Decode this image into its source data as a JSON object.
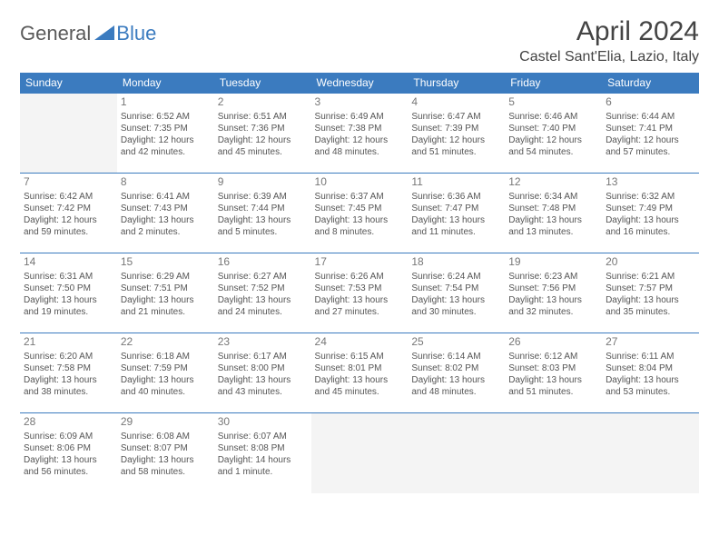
{
  "logo": {
    "part1": "General",
    "part2": "Blue"
  },
  "title": "April 2024",
  "location": "Castel Sant'Elia, Lazio, Italy",
  "colors": {
    "header_bg": "#3b7bbf",
    "header_text": "#ffffff",
    "cell_border": "#3b7bbf",
    "dim_bg": "#f4f4f4",
    "body_text": "#555555",
    "daynum_text": "#777777",
    "logo_gray": "#5a5a5a",
    "logo_blue": "#3b7bbf"
  },
  "day_headers": [
    "Sunday",
    "Monday",
    "Tuesday",
    "Wednesday",
    "Thursday",
    "Friday",
    "Saturday"
  ],
  "weeks": [
    [
      {
        "day": "",
        "lines": []
      },
      {
        "day": "1",
        "lines": [
          "Sunrise: 6:52 AM",
          "Sunset: 7:35 PM",
          "Daylight: 12 hours",
          "and 42 minutes."
        ]
      },
      {
        "day": "2",
        "lines": [
          "Sunrise: 6:51 AM",
          "Sunset: 7:36 PM",
          "Daylight: 12 hours",
          "and 45 minutes."
        ]
      },
      {
        "day": "3",
        "lines": [
          "Sunrise: 6:49 AM",
          "Sunset: 7:38 PM",
          "Daylight: 12 hours",
          "and 48 minutes."
        ]
      },
      {
        "day": "4",
        "lines": [
          "Sunrise: 6:47 AM",
          "Sunset: 7:39 PM",
          "Daylight: 12 hours",
          "and 51 minutes."
        ]
      },
      {
        "day": "5",
        "lines": [
          "Sunrise: 6:46 AM",
          "Sunset: 7:40 PM",
          "Daylight: 12 hours",
          "and 54 minutes."
        ]
      },
      {
        "day": "6",
        "lines": [
          "Sunrise: 6:44 AM",
          "Sunset: 7:41 PM",
          "Daylight: 12 hours",
          "and 57 minutes."
        ]
      }
    ],
    [
      {
        "day": "7",
        "lines": [
          "Sunrise: 6:42 AM",
          "Sunset: 7:42 PM",
          "Daylight: 12 hours",
          "and 59 minutes."
        ]
      },
      {
        "day": "8",
        "lines": [
          "Sunrise: 6:41 AM",
          "Sunset: 7:43 PM",
          "Daylight: 13 hours",
          "and 2 minutes."
        ]
      },
      {
        "day": "9",
        "lines": [
          "Sunrise: 6:39 AM",
          "Sunset: 7:44 PM",
          "Daylight: 13 hours",
          "and 5 minutes."
        ]
      },
      {
        "day": "10",
        "lines": [
          "Sunrise: 6:37 AM",
          "Sunset: 7:45 PM",
          "Daylight: 13 hours",
          "and 8 minutes."
        ]
      },
      {
        "day": "11",
        "lines": [
          "Sunrise: 6:36 AM",
          "Sunset: 7:47 PM",
          "Daylight: 13 hours",
          "and 11 minutes."
        ]
      },
      {
        "day": "12",
        "lines": [
          "Sunrise: 6:34 AM",
          "Sunset: 7:48 PM",
          "Daylight: 13 hours",
          "and 13 minutes."
        ]
      },
      {
        "day": "13",
        "lines": [
          "Sunrise: 6:32 AM",
          "Sunset: 7:49 PM",
          "Daylight: 13 hours",
          "and 16 minutes."
        ]
      }
    ],
    [
      {
        "day": "14",
        "lines": [
          "Sunrise: 6:31 AM",
          "Sunset: 7:50 PM",
          "Daylight: 13 hours",
          "and 19 minutes."
        ]
      },
      {
        "day": "15",
        "lines": [
          "Sunrise: 6:29 AM",
          "Sunset: 7:51 PM",
          "Daylight: 13 hours",
          "and 21 minutes."
        ]
      },
      {
        "day": "16",
        "lines": [
          "Sunrise: 6:27 AM",
          "Sunset: 7:52 PM",
          "Daylight: 13 hours",
          "and 24 minutes."
        ]
      },
      {
        "day": "17",
        "lines": [
          "Sunrise: 6:26 AM",
          "Sunset: 7:53 PM",
          "Daylight: 13 hours",
          "and 27 minutes."
        ]
      },
      {
        "day": "18",
        "lines": [
          "Sunrise: 6:24 AM",
          "Sunset: 7:54 PM",
          "Daylight: 13 hours",
          "and 30 minutes."
        ]
      },
      {
        "day": "19",
        "lines": [
          "Sunrise: 6:23 AM",
          "Sunset: 7:56 PM",
          "Daylight: 13 hours",
          "and 32 minutes."
        ]
      },
      {
        "day": "20",
        "lines": [
          "Sunrise: 6:21 AM",
          "Sunset: 7:57 PM",
          "Daylight: 13 hours",
          "and 35 minutes."
        ]
      }
    ],
    [
      {
        "day": "21",
        "lines": [
          "Sunrise: 6:20 AM",
          "Sunset: 7:58 PM",
          "Daylight: 13 hours",
          "and 38 minutes."
        ]
      },
      {
        "day": "22",
        "lines": [
          "Sunrise: 6:18 AM",
          "Sunset: 7:59 PM",
          "Daylight: 13 hours",
          "and 40 minutes."
        ]
      },
      {
        "day": "23",
        "lines": [
          "Sunrise: 6:17 AM",
          "Sunset: 8:00 PM",
          "Daylight: 13 hours",
          "and 43 minutes."
        ]
      },
      {
        "day": "24",
        "lines": [
          "Sunrise: 6:15 AM",
          "Sunset: 8:01 PM",
          "Daylight: 13 hours",
          "and 45 minutes."
        ]
      },
      {
        "day": "25",
        "lines": [
          "Sunrise: 6:14 AM",
          "Sunset: 8:02 PM",
          "Daylight: 13 hours",
          "and 48 minutes."
        ]
      },
      {
        "day": "26",
        "lines": [
          "Sunrise: 6:12 AM",
          "Sunset: 8:03 PM",
          "Daylight: 13 hours",
          "and 51 minutes."
        ]
      },
      {
        "day": "27",
        "lines": [
          "Sunrise: 6:11 AM",
          "Sunset: 8:04 PM",
          "Daylight: 13 hours",
          "and 53 minutes."
        ]
      }
    ],
    [
      {
        "day": "28",
        "lines": [
          "Sunrise: 6:09 AM",
          "Sunset: 8:06 PM",
          "Daylight: 13 hours",
          "and 56 minutes."
        ]
      },
      {
        "day": "29",
        "lines": [
          "Sunrise: 6:08 AM",
          "Sunset: 8:07 PM",
          "Daylight: 13 hours",
          "and 58 minutes."
        ]
      },
      {
        "day": "30",
        "lines": [
          "Sunrise: 6:07 AM",
          "Sunset: 8:08 PM",
          "Daylight: 14 hours",
          "and 1 minute."
        ]
      },
      {
        "day": "",
        "lines": []
      },
      {
        "day": "",
        "lines": []
      },
      {
        "day": "",
        "lines": []
      },
      {
        "day": "",
        "lines": []
      }
    ]
  ]
}
